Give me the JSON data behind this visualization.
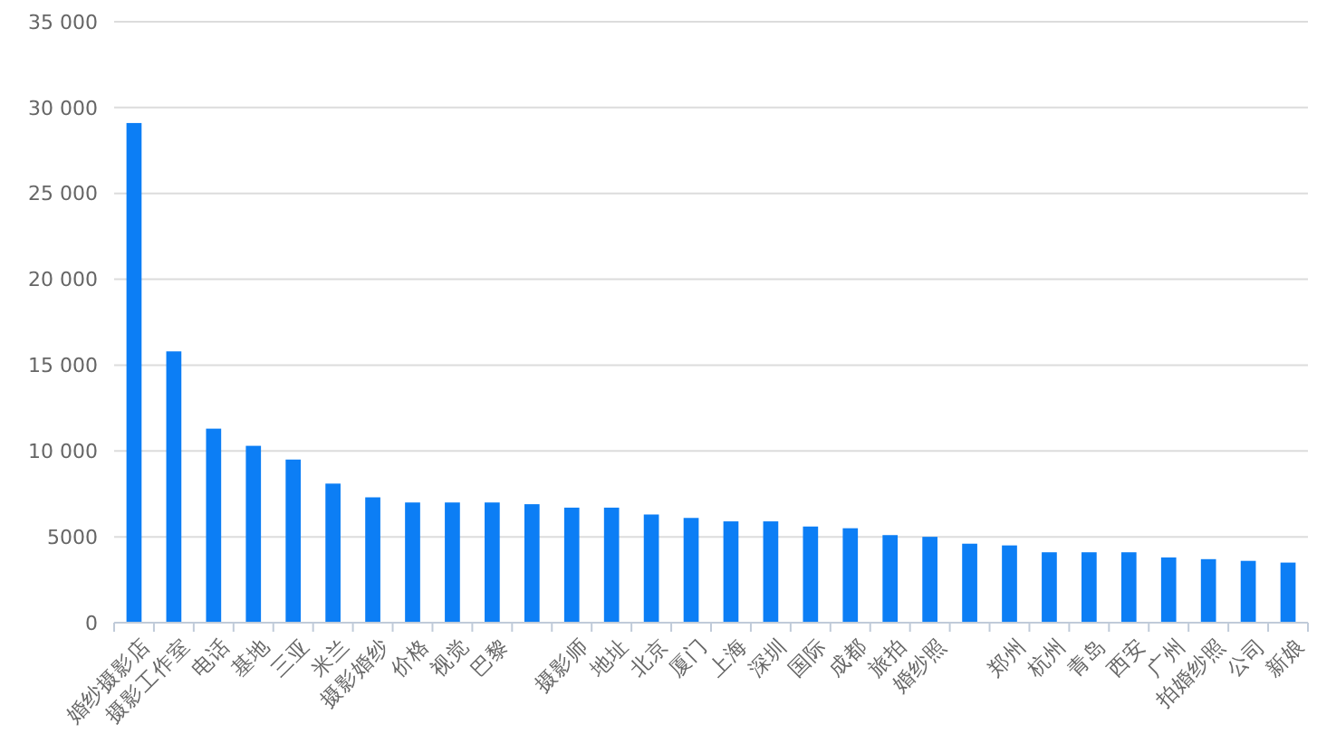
{
  "chart_data": {
    "type": "bar",
    "categories": [
      "婚纱摄影店",
      "摄影工作室",
      "电话",
      "基地",
      "三亚",
      "米兰",
      "摄影婚纱",
      "价格",
      "视觉",
      "巴黎",
      null,
      "摄影师",
      "地址",
      "北京",
      "厦门",
      "上海",
      "深圳",
      "国际",
      "成都",
      "旅拍",
      "婚纱照",
      null,
      "郑州",
      "杭州",
      "青岛",
      "西安",
      "广州",
      "拍婚纱照",
      "公司",
      "新娘"
    ],
    "values": [
      29100,
      15800,
      11300,
      10300,
      9500,
      8100,
      7300,
      7000,
      7000,
      7000,
      6900,
      6700,
      6700,
      6300,
      6100,
      5900,
      5900,
      5600,
      5500,
      5100,
      5000,
      4600,
      4500,
      4100,
      4100,
      4100,
      3800,
      3700,
      3600,
      3500
    ],
    "color": "#0c7ef5",
    "ylim": [
      0,
      35000
    ],
    "yticks": [
      0,
      5000,
      {
        "value": 10000,
        "label": "10 000"
      },
      {
        "value": 15000,
        "label": "15 000"
      },
      {
        "value": 20000,
        "label": "20 000"
      },
      {
        "value": 25000,
        "label": "25 000"
      },
      {
        "value": 30000,
        "label": "30 000"
      },
      {
        "value": 35000,
        "label": "35 000"
      }
    ],
    "grid": "y"
  }
}
